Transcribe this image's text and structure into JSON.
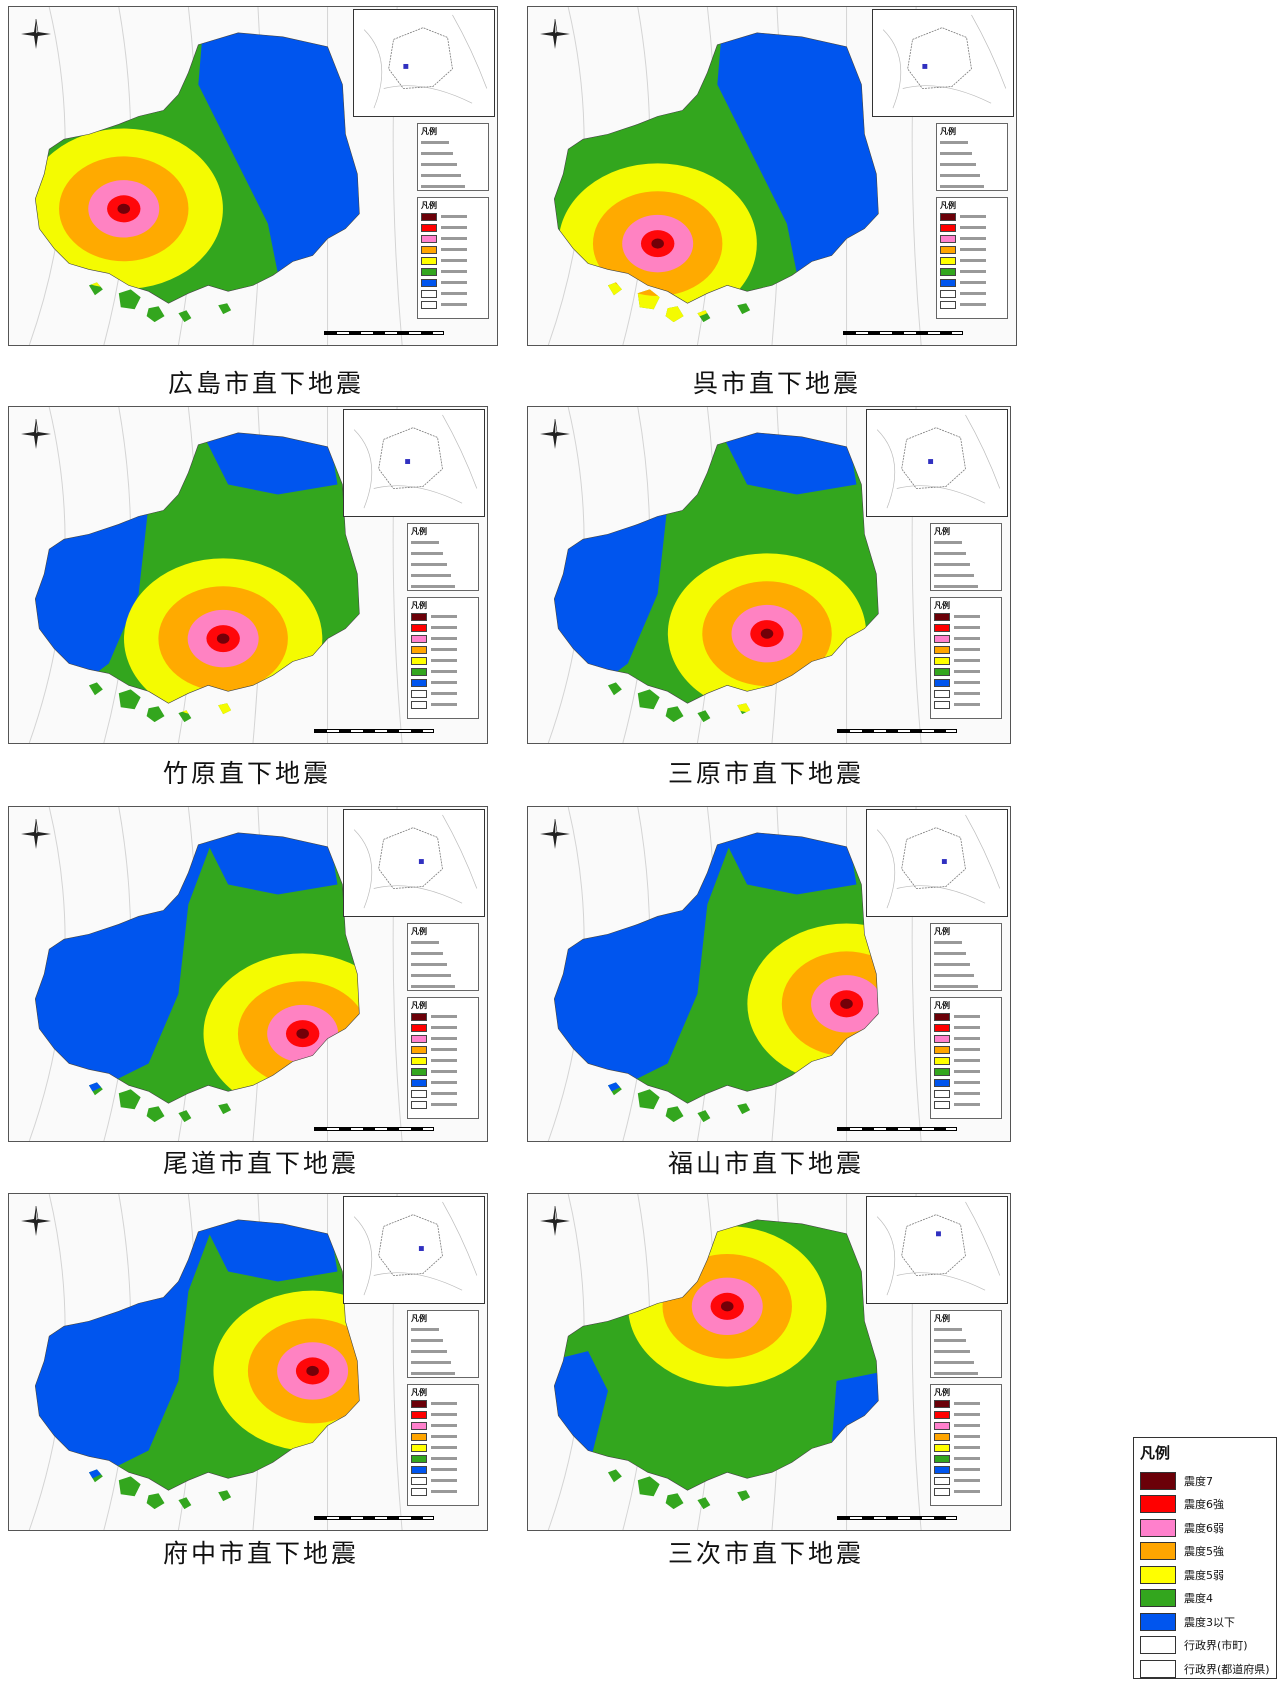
{
  "colors": {
    "c7": "#6b0008",
    "c6s": "#ff0000",
    "c6w": "#ff80cc",
    "c5s": "#ffa500",
    "c5w": "#ffff00",
    "c4": "#33a61e",
    "c3": "#0055ee"
  },
  "panels": [
    {
      "caption": "広島市直下地震",
      "epicenter": "west-central",
      "inset_marker": "west"
    },
    {
      "caption": "呉市直下地震",
      "epicenter": "south-west",
      "inset_marker": "west"
    },
    {
      "caption": "竹原直下地震",
      "epicenter": "south-central",
      "inset_marker": "center"
    },
    {
      "caption": "三原市直下地震",
      "epicenter": "south-central-east",
      "inset_marker": "center"
    },
    {
      "caption": "尾道市直下地震",
      "epicenter": "south-east",
      "inset_marker": "east"
    },
    {
      "caption": "福山市直下地震",
      "epicenter": "east",
      "inset_marker": "east"
    },
    {
      "caption": "府中市直下地震",
      "epicenter": "east-central",
      "inset_marker": "east"
    },
    {
      "caption": "三次市直下地震",
      "epicenter": "north-central",
      "inset_marker": "north"
    }
  ],
  "legend": {
    "title": "凡例",
    "items": [
      {
        "label": "震度7",
        "color": "#6b0008"
      },
      {
        "label": "震度6強",
        "color": "#ff0000"
      },
      {
        "label": "震度6弱",
        "color": "#ff80cc"
      },
      {
        "label": "震度5強",
        "color": "#ffa500"
      },
      {
        "label": "震度5弱",
        "color": "#ffff00"
      },
      {
        "label": "震度4",
        "color": "#33a61e"
      },
      {
        "label": "震度3以下",
        "color": "#0055ee"
      },
      {
        "label": "行政界(市町)",
        "color": "#ffffff"
      },
      {
        "label": "行政界(都道府県)",
        "color": "#ffffff"
      }
    ]
  }
}
